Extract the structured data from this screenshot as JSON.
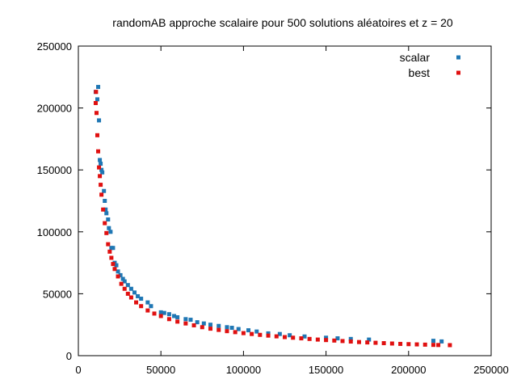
{
  "chart_data": {
    "type": "scatter",
    "title": "randomAB approche scalaire pour 500 solutions aléatoires et z = 20",
    "xlabel": "",
    "ylabel": "",
    "xlim": [
      0,
      250000
    ],
    "ylim": [
      0,
      250000
    ],
    "xticks": [
      "0",
      "50000",
      "100000",
      "150000",
      "200000",
      "250000"
    ],
    "yticks": [
      "0",
      "50000",
      "100000",
      "150000",
      "200000",
      "250000"
    ],
    "grid": false,
    "legend_position": "top-right",
    "series": [
      {
        "name": "scalar",
        "color": "#1f77b4",
        "points": [
          [
            10500,
            213000
          ],
          [
            11500,
            207000
          ],
          [
            12000,
            217000
          ],
          [
            12500,
            190000
          ],
          [
            13000,
            158000
          ],
          [
            13500,
            155000
          ],
          [
            14000,
            150000
          ],
          [
            14500,
            148000
          ],
          [
            15500,
            133000
          ],
          [
            16000,
            125000
          ],
          [
            16500,
            118000
          ],
          [
            17000,
            115000
          ],
          [
            18000,
            110000
          ],
          [
            18500,
            103000
          ],
          [
            19500,
            100000
          ],
          [
            20000,
            87000
          ],
          [
            21000,
            87000
          ],
          [
            22000,
            75000
          ],
          [
            23000,
            73000
          ],
          [
            24000,
            68000
          ],
          [
            25500,
            65000
          ],
          [
            27000,
            62000
          ],
          [
            28000,
            60000
          ],
          [
            30000,
            57000
          ],
          [
            32000,
            54000
          ],
          [
            34000,
            51000
          ],
          [
            36000,
            48000
          ],
          [
            38000,
            46000
          ],
          [
            42000,
            43000
          ],
          [
            44000,
            40000
          ],
          [
            50000,
            35000
          ],
          [
            52000,
            34500
          ],
          [
            55000,
            33500
          ],
          [
            58000,
            32000
          ],
          [
            60000,
            31000
          ],
          [
            65000,
            29500
          ],
          [
            68000,
            29000
          ],
          [
            72000,
            27000
          ],
          [
            76000,
            26000
          ],
          [
            80000,
            25000
          ],
          [
            85000,
            24000
          ],
          [
            90000,
            23000
          ],
          [
            93000,
            22500
          ],
          [
            97000,
            21500
          ],
          [
            103000,
            20500
          ],
          [
            108000,
            19500
          ],
          [
            115000,
            18000
          ],
          [
            122000,
            17500
          ],
          [
            128000,
            16500
          ],
          [
            137000,
            15500
          ],
          [
            150000,
            14500
          ],
          [
            157000,
            14000
          ],
          [
            165000,
            13500
          ],
          [
            176000,
            13000
          ],
          [
            215000,
            12000
          ],
          [
            220000,
            11500
          ]
        ]
      },
      {
        "name": "best",
        "color": "#e01010",
        "points": [
          [
            10500,
            204000
          ],
          [
            10700,
            213000
          ],
          [
            11000,
            196000
          ],
          [
            11500,
            178000
          ],
          [
            12000,
            165000
          ],
          [
            12500,
            152000
          ],
          [
            13000,
            145000
          ],
          [
            13500,
            138000
          ],
          [
            14000,
            130000
          ],
          [
            15000,
            118000
          ],
          [
            16000,
            107000
          ],
          [
            17000,
            99000
          ],
          [
            18000,
            90000
          ],
          [
            19000,
            84000
          ],
          [
            20000,
            79000
          ],
          [
            21000,
            74000
          ],
          [
            22000,
            70000
          ],
          [
            24000,
            64000
          ],
          [
            26000,
            58000
          ],
          [
            28000,
            54000
          ],
          [
            30000,
            50000
          ],
          [
            32000,
            47000
          ],
          [
            35000,
            43000
          ],
          [
            38000,
            40000
          ],
          [
            42000,
            36500
          ],
          [
            46000,
            34000
          ],
          [
            50000,
            32000
          ],
          [
            55000,
            29500
          ],
          [
            60000,
            27500
          ],
          [
            65000,
            26000
          ],
          [
            70000,
            24500
          ],
          [
            75000,
            23000
          ],
          [
            80000,
            21800
          ],
          [
            85000,
            20800
          ],
          [
            90000,
            19800
          ],
          [
            95000,
            19000
          ],
          [
            100000,
            18200
          ],
          [
            105000,
            17500
          ],
          [
            110000,
            16800
          ],
          [
            115000,
            16200
          ],
          [
            120000,
            15600
          ],
          [
            125000,
            15000
          ],
          [
            130000,
            14500
          ],
          [
            135000,
            14000
          ],
          [
            140000,
            13500
          ],
          [
            145000,
            13000
          ],
          [
            150000,
            12600
          ],
          [
            155000,
            12200
          ],
          [
            160000,
            11800
          ],
          [
            165000,
            11400
          ],
          [
            170000,
            11000
          ],
          [
            175000,
            10700
          ],
          [
            180000,
            10400
          ],
          [
            185000,
            10100
          ],
          [
            190000,
            9800
          ],
          [
            195000,
            9500
          ],
          [
            200000,
            9300
          ],
          [
            205000,
            9100
          ],
          [
            210000,
            8900
          ],
          [
            215000,
            8700
          ],
          [
            218000,
            8600
          ],
          [
            225000,
            8500
          ]
        ]
      }
    ]
  }
}
